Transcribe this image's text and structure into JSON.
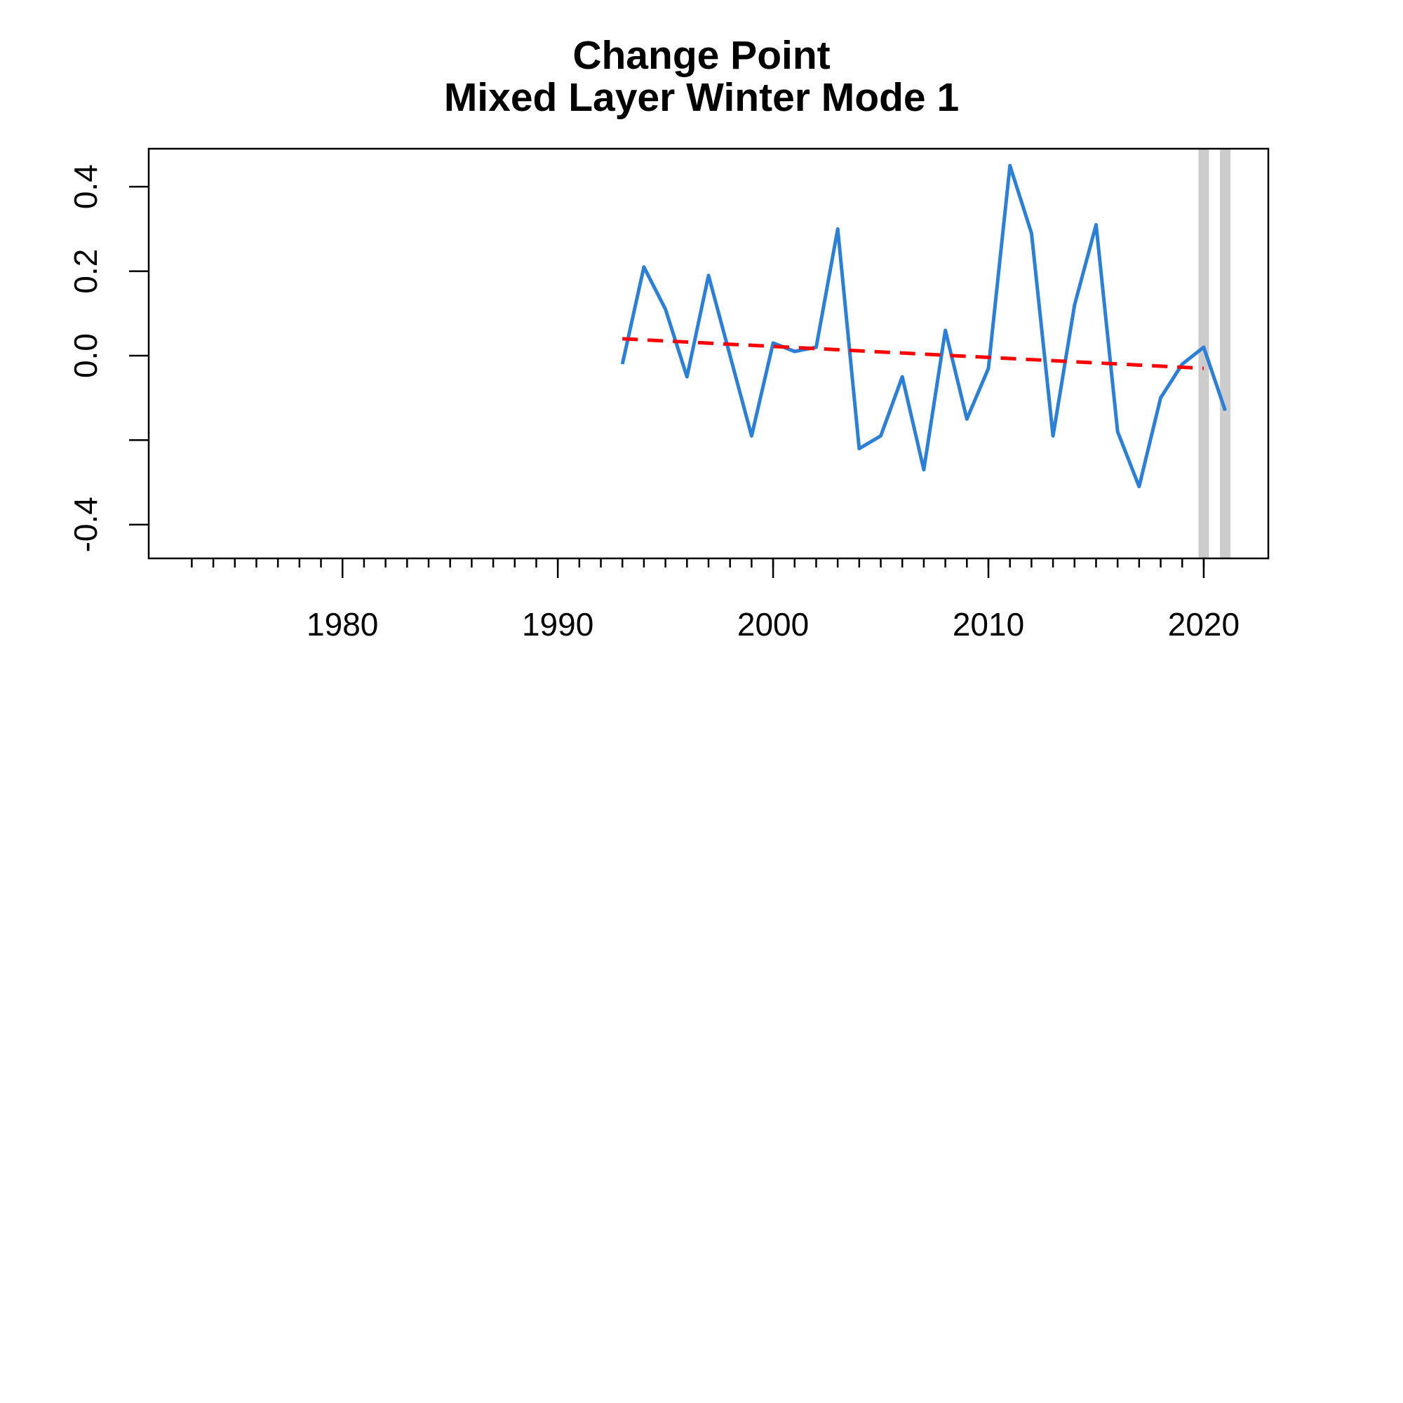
{
  "chart_data": {
    "type": "line",
    "title": "Change Point",
    "subtitle": "Mixed Layer Winter Mode 1",
    "xlabel": "",
    "ylabel": "",
    "xlim": [
      1971,
      2023
    ],
    "ylim": [
      -0.48,
      0.49
    ],
    "x_ticks": [
      1980,
      1990,
      2000,
      2010,
      2020
    ],
    "x_minor_ticks": [
      1973,
      1974,
      1975,
      1976,
      1977,
      1978,
      1979,
      1980,
      1981,
      1982,
      1983,
      1984,
      1985,
      1986,
      1987,
      1988,
      1989,
      1990,
      1991,
      1992,
      1993,
      1994,
      1995,
      1996,
      1997,
      1998,
      1999,
      2000,
      2001,
      2002,
      2003,
      2004,
      2005,
      2006,
      2007,
      2008,
      2009,
      2010,
      2011,
      2012,
      2013,
      2014,
      2015,
      2016,
      2017,
      2018,
      2019,
      2020
    ],
    "y_ticks": [
      -0.4,
      -0.2,
      0.0,
      0.2,
      0.4
    ],
    "y_tick_labels": [
      "-0.4",
      "",
      "0.0",
      "0.2",
      "0.4"
    ],
    "grid": false,
    "series": [
      {
        "color": "#2a7fd9",
        "style": "solid",
        "x": [
          1993,
          1994,
          1995,
          1996,
          1997,
          1998,
          1999,
          2000,
          2001,
          2002,
          2003,
          2004,
          2005,
          2006,
          2007,
          2008,
          2009,
          2010,
          2011,
          2012,
          2013,
          2014,
          2015,
          2016,
          2017,
          2018,
          2019,
          2020,
          2021
        ],
        "y": [
          -0.02,
          0.21,
          0.11,
          -0.05,
          0.19,
          0.0,
          -0.19,
          0.03,
          0.01,
          0.02,
          0.3,
          -0.22,
          -0.19,
          -0.05,
          -0.27,
          0.06,
          -0.15,
          -0.03,
          0.45,
          0.29,
          -0.19,
          0.12,
          0.31,
          -0.18,
          -0.31,
          -0.1,
          -0.02,
          0.02,
          -0.13
        ]
      },
      {
        "color": "#ff0000",
        "style": "dashed",
        "x": [
          1993,
          2020
        ],
        "y": [
          0.04,
          -0.03
        ]
      }
    ],
    "change_points": {
      "color": "#cccccc",
      "x": [
        2020,
        2021
      ]
    }
  }
}
